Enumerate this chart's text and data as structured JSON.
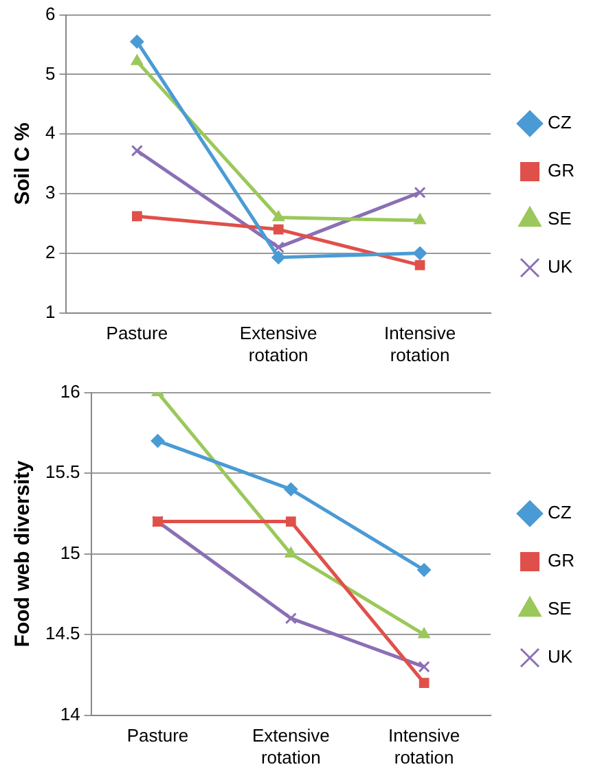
{
  "chart_data": [
    {
      "type": "line",
      "ylabel": "Soil C %",
      "categories": [
        "Pasture",
        "Extensive rotation",
        "Intensive rotation"
      ],
      "ylim": [
        1,
        6
      ],
      "yticks": [
        1,
        2,
        3,
        4,
        5,
        6
      ],
      "grid": "y",
      "legend": "right",
      "series": [
        {
          "name": "CZ",
          "color": "#4a9bd5",
          "marker": "diamond",
          "values": [
            5.55,
            1.93,
            2.0
          ]
        },
        {
          "name": "GR",
          "color": "#e0504a",
          "marker": "square",
          "values": [
            2.62,
            2.4,
            1.8
          ]
        },
        {
          "name": "SE",
          "color": "#9bc85a",
          "marker": "triangle",
          "values": [
            5.22,
            2.6,
            2.55
          ]
        },
        {
          "name": "UK",
          "color": "#8b6fb5",
          "marker": "cross",
          "values": [
            3.72,
            2.1,
            3.02
          ]
        }
      ]
    },
    {
      "type": "line",
      "ylabel": "Food web diversity",
      "categories": [
        "Pasture",
        "Extensive rotation",
        "Intensive rotation"
      ],
      "ylim": [
        14,
        16
      ],
      "yticks": [
        14,
        14.5,
        15,
        15.5,
        16
      ],
      "grid": "y",
      "legend": "right",
      "series": [
        {
          "name": "CZ",
          "color": "#4a9bd5",
          "marker": "diamond",
          "values": [
            15.7,
            15.4,
            14.9
          ]
        },
        {
          "name": "GR",
          "color": "#e0504a",
          "marker": "square",
          "values": [
            15.2,
            15.2,
            14.2
          ]
        },
        {
          "name": "SE",
          "color": "#9bc85a",
          "marker": "triangle",
          "values": [
            16.0,
            15.0,
            14.5
          ]
        },
        {
          "name": "UK",
          "color": "#8b6fb5",
          "marker": "cross",
          "values": [
            15.2,
            14.6,
            14.3
          ]
        }
      ]
    }
  ]
}
